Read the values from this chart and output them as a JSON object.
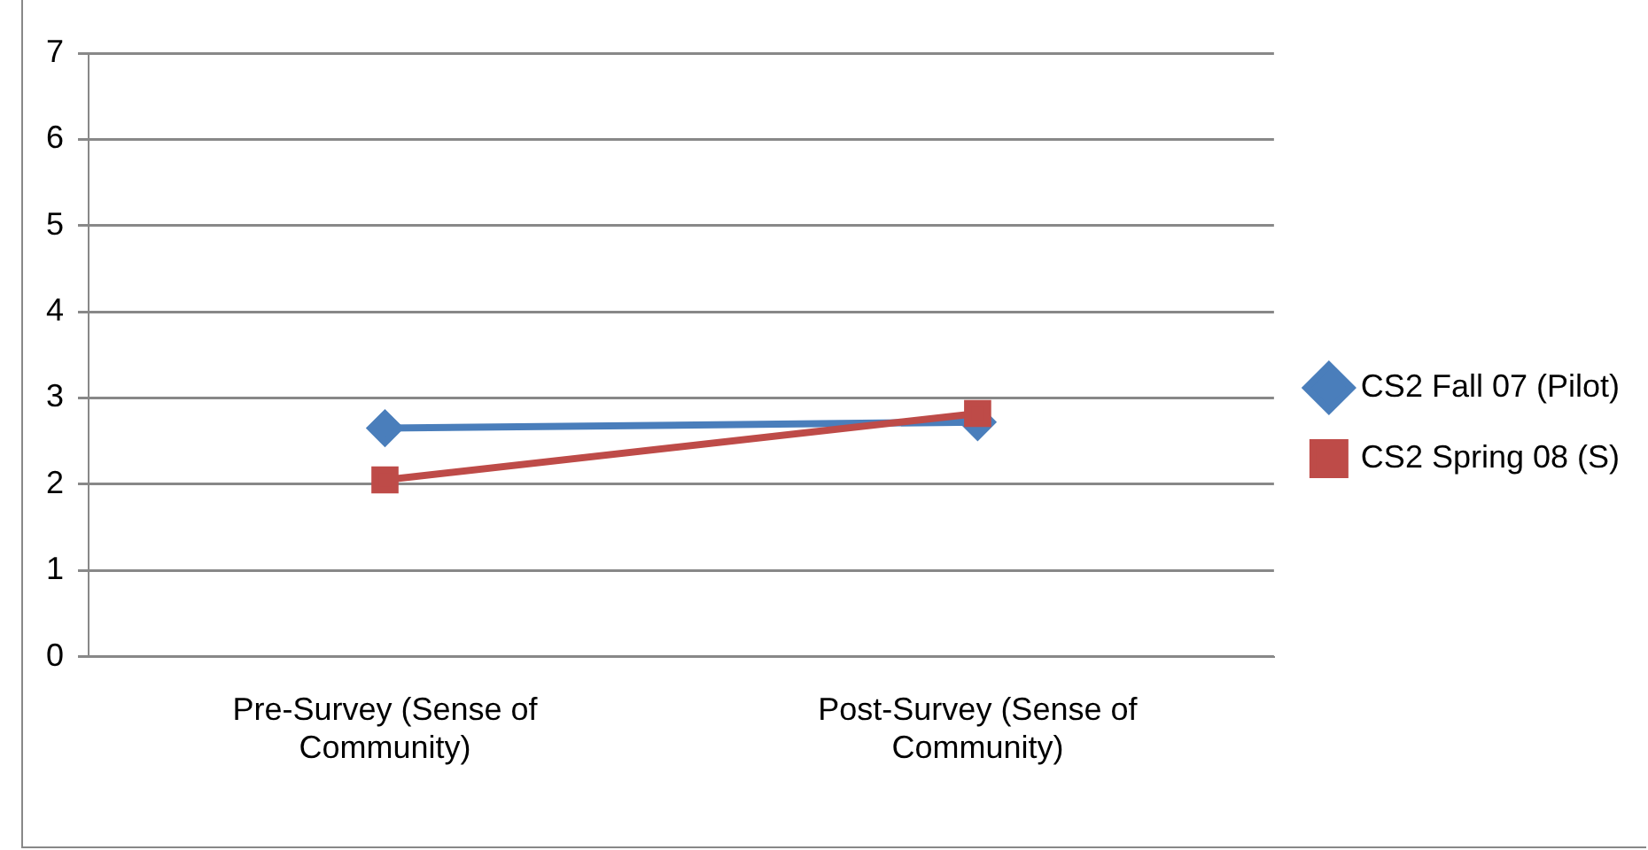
{
  "chart_data": {
    "type": "line",
    "categories": [
      "Pre-Survey (Sense of Community)",
      "Post-Survey (Sense of Community)"
    ],
    "series": [
      {
        "name": "CS2 Fall 07 (Pilot)",
        "color": "#4a7ebb",
        "values": [
          2.65,
          2.72
        ],
        "marker": "diamond"
      },
      {
        "name": "CS2 Spring 08 (S)",
        "color": "#be4b48",
        "values": [
          2.05,
          2.82
        ],
        "marker": "square"
      }
    ],
    "ylim": [
      0,
      7
    ],
    "yticks": [
      0,
      1,
      2,
      3,
      4,
      5,
      6,
      7
    ],
    "grid": "y",
    "legend": "right",
    "line_style": "solid"
  }
}
